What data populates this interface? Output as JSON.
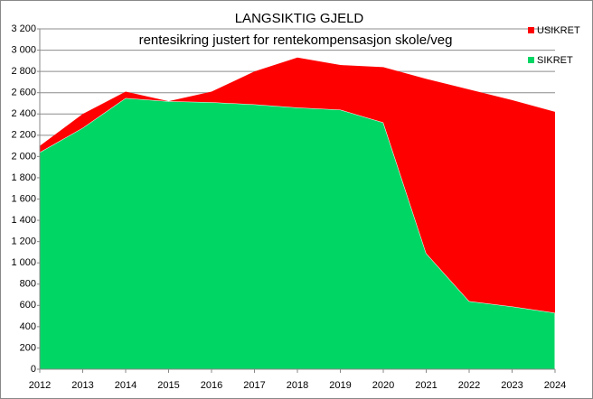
{
  "chart_data": {
    "type": "stacked-area",
    "title": "LANGSIKTIG GJELD",
    "subtitle": "rentesikring  justert for rentekompensasjon skole/veg",
    "categories": [
      "2012",
      "2013",
      "2014",
      "2015",
      "2016",
      "2017",
      "2018",
      "2019",
      "2020",
      "2021",
      "2022",
      "2023",
      "2024"
    ],
    "series": [
      {
        "name": "SIKRET",
        "color": "#00d664",
        "values": [
          2040,
          2270,
          2550,
          2520,
          2510,
          2490,
          2460,
          2440,
          2320,
          1090,
          640,
          590,
          530
        ]
      },
      {
        "name": "USIKRET",
        "color": "#ff0000",
        "values": [
          60,
          130,
          60,
          0,
          100,
          310,
          470,
          420,
          520,
          1640,
          1990,
          1940,
          1890
        ]
      }
    ],
    "ylim": [
      0,
      3200
    ],
    "yticks": [
      0,
      200,
      400,
      600,
      800,
      {
        "value": 1000,
        "label": "1 000"
      },
      {
        "value": 1200,
        "label": "1 200"
      },
      {
        "value": 1400,
        "label": "1 400"
      },
      {
        "value": 1600,
        "label": "1 600"
      },
      {
        "value": 1800,
        "label": "1 800"
      },
      {
        "value": 2000,
        "label": "2 000"
      },
      {
        "value": 2200,
        "label": "2 200"
      },
      {
        "value": 2400,
        "label": "2 400"
      },
      {
        "value": 2600,
        "label": "2 600"
      },
      {
        "value": 2800,
        "label": "2 800"
      },
      {
        "value": 3000,
        "label": "3 000"
      },
      {
        "value": 3200,
        "label": "3 200"
      }
    ],
    "grid": true,
    "legend": "top-right"
  }
}
